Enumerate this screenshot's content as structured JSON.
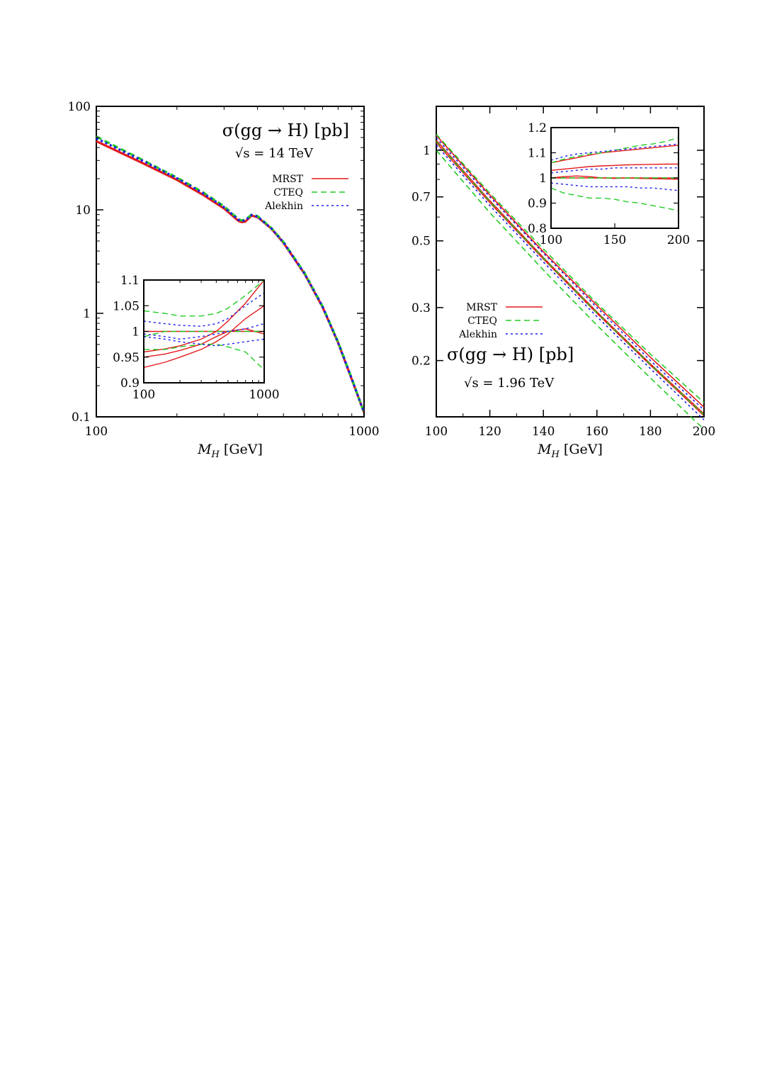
{
  "colors": {
    "MRST": "#e41a1c",
    "CTEQ": "#22cc22",
    "Alekhin": "#1a1aee"
  },
  "chart_data": [
    {
      "type": "line",
      "xlabel": "M_H [GeV]",
      "ylabel": "",
      "xscale": "log",
      "yscale": "log",
      "xlim": [
        100,
        1000
      ],
      "ylim": [
        0.1,
        100
      ],
      "xticks": [
        100,
        1000
      ],
      "xtick_labels": [
        "100",
        "1000"
      ],
      "yticks": [
        0.1,
        1,
        10,
        100
      ],
      "ytick_labels": [
        "0.1",
        "1",
        "10",
        "100"
      ],
      "annotation_title": "σ(gg → H) [pb]",
      "annotation_sub": "√s = 14 TeV",
      "legend": [
        "MRST",
        "CTEQ",
        "Alekhin"
      ],
      "legend_position": "top-right",
      "x": [
        100,
        150,
        200,
        250,
        300,
        340,
        350,
        360,
        380,
        400,
        450,
        500,
        600,
        700,
        800,
        900,
        1000
      ],
      "series": [
        {
          "name": "MRST",
          "style": "solid",
          "values": [
            46,
            28,
            19.5,
            14,
            10.3,
            7.8,
            7.6,
            7.7,
            8.8,
            8.5,
            6.6,
            4.8,
            2.4,
            1.15,
            0.52,
            0.23,
            0.11
          ]
        },
        {
          "name": "CTEQ",
          "style": "dashed",
          "values": [
            51,
            30,
            20.5,
            14.8,
            10.8,
            8.1,
            7.9,
            8.0,
            9.0,
            8.7,
            6.7,
            4.9,
            2.45,
            1.17,
            0.53,
            0.235,
            0.11
          ]
        },
        {
          "name": "Alekhin",
          "style": "dotted",
          "values": [
            49,
            29.5,
            20.2,
            14.5,
            10.6,
            8.0,
            7.8,
            7.9,
            8.9,
            8.6,
            6.65,
            4.85,
            2.42,
            1.16,
            0.52,
            0.232,
            0.11
          ]
        }
      ],
      "inset": {
        "xscale": "log",
        "xlim": [
          100,
          1000
        ],
        "ylim": [
          0.9,
          1.1
        ],
        "xticks": [
          100,
          1000
        ],
        "xtick_labels": [
          "100",
          "1000"
        ],
        "yticks": [
          0.9,
          0.95,
          1,
          1.05,
          1.1
        ],
        "ytick_labels": [
          "0.9",
          "0.95",
          "1",
          "1.05",
          "1.1"
        ],
        "x": [
          100,
          150,
          200,
          300,
          400,
          500,
          700,
          1000
        ],
        "series": [
          {
            "name": "MRST",
            "style": "solid",
            "values": [
              1,
              1,
              1,
              1,
              1,
              1,
              1,
              1
            ]
          },
          {
            "name": "MRST",
            "style": "solid",
            "values": [
              0.96,
              0.966,
              0.972,
              0.985,
              1.0,
              1.02,
              1.055,
              1.1
            ]
          },
          {
            "name": "MRST",
            "style": "solid",
            "values": [
              0.93,
              0.94,
              0.95,
              0.965,
              0.98,
              0.995,
              1.025,
              1.05
            ]
          },
          {
            "name": "MRST",
            "style": "solid",
            "values": [
              0.95,
              0.956,
              0.963,
              0.975,
              0.99,
              1.0,
              1.005,
              0.995
            ]
          },
          {
            "name": "CTEQ",
            "style": "dashed",
            "values": [
              1.04,
              1.035,
              1.03,
              1.03,
              1.035,
              1.045,
              1.07,
              1.1
            ]
          },
          {
            "name": "CTEQ",
            "style": "dashed",
            "values": [
              0.99,
              1.0,
              1.0,
              1.0,
              1.0,
              1.0,
              1.0,
              1.0
            ]
          },
          {
            "name": "CTEQ",
            "style": "dashed",
            "values": [
              0.965,
              0.965,
              0.97,
              0.975,
              0.975,
              0.97,
              0.96,
              0.925
            ]
          },
          {
            "name": "Alekhin",
            "style": "dotted",
            "values": [
              1.02,
              1.015,
              1.012,
              1.01,
              1.015,
              1.025,
              1.05,
              1.075
            ]
          },
          {
            "name": "Alekhin",
            "style": "dotted",
            "values": [
              0.99,
              0.985,
              0.98,
              0.975,
              0.972,
              0.975,
              0.98,
              0.985
            ]
          },
          {
            "name": "Alekhin",
            "style": "dotted",
            "values": [
              0.995,
              0.99,
              0.985,
              0.99,
              0.995,
              1.0,
              1.005,
              1.015
            ]
          }
        ]
      }
    },
    {
      "type": "line",
      "xlabel": "M_H [GeV]",
      "ylabel": "",
      "xscale": "linear",
      "yscale": "log",
      "xlim": [
        100,
        200
      ],
      "ylim": [
        0.13,
        1.4
      ],
      "xticks": [
        100,
        120,
        140,
        160,
        180,
        200
      ],
      "xtick_labels": [
        "100",
        "120",
        "140",
        "160",
        "180",
        "200"
      ],
      "yticks": [
        0.2,
        0.3,
        0.5,
        0.7,
        1
      ],
      "ytick_labels": [
        "0.2",
        "0.3",
        "0.5",
        "0.7",
        "1"
      ],
      "annotation_title": "σ(gg → H) [pb]",
      "annotation_sub": "√s = 1.96 TeV",
      "legend": [
        "MRST",
        "CTEQ",
        "Alekhin"
      ],
      "legend_position": "center-left",
      "x": [
        100,
        120,
        140,
        160,
        180,
        200
      ],
      "series": [
        {
          "name": "MRST",
          "style": "solid",
          "values": [
            1.12,
            0.71,
            0.46,
            0.305,
            0.205,
            0.14
          ]
        },
        {
          "name": "MRST",
          "style": "solid",
          "values": [
            1.08,
            0.68,
            0.44,
            0.29,
            0.195,
            0.133
          ]
        },
        {
          "name": "MRST",
          "style": "solid",
          "values": [
            1.06,
            0.67,
            0.435,
            0.287,
            0.193,
            0.131
          ]
        },
        {
          "name": "CTEQ",
          "style": "dashed",
          "values": [
            1.13,
            0.72,
            0.47,
            0.31,
            0.21,
            0.145
          ]
        },
        {
          "name": "CTEQ",
          "style": "dashed",
          "values": [
            1.07,
            0.675,
            0.438,
            0.288,
            0.194,
            0.132
          ]
        },
        {
          "name": "CTEQ",
          "style": "dashed",
          "values": [
            1.0,
            0.62,
            0.4,
            0.262,
            0.175,
            0.118
          ]
        },
        {
          "name": "Alekhin",
          "style": "dotted",
          "values": [
            1.1,
            0.7,
            0.455,
            0.3,
            0.2,
            0.137
          ]
        },
        {
          "name": "Alekhin",
          "style": "dotted",
          "values": [
            1.04,
            0.655,
            0.425,
            0.28,
            0.188,
            0.127
          ]
        }
      ],
      "inset": {
        "xscale": "linear",
        "xlim": [
          100,
          200
        ],
        "ylim": [
          0.8,
          1.2
        ],
        "xticks": [
          100,
          150,
          200
        ],
        "xtick_labels": [
          "100",
          "150",
          "200"
        ],
        "yticks": [
          0.8,
          0.9,
          1,
          1.1,
          1.2
        ],
        "ytick_labels": [
          "0.8",
          "0.9",
          "1",
          "1.1",
          "1.2"
        ],
        "x": [
          100,
          110,
          120,
          130,
          140,
          150,
          160,
          170,
          180,
          190,
          200
        ],
        "series": [
          {
            "name": "MRST",
            "style": "solid",
            "values": [
              1,
              1,
              1,
              1,
              1,
              1,
              1,
              1,
              1,
              1,
              1
            ]
          },
          {
            "name": "MRST",
            "style": "solid",
            "values": [
              1.06,
              1.07,
              1.08,
              1.09,
              1.1,
              1.105,
              1.11,
              1.115,
              1.12,
              1.125,
              1.13
            ]
          },
          {
            "name": "MRST",
            "style": "solid",
            "values": [
              1.03,
              1.035,
              1.04,
              1.045,
              1.048,
              1.05,
              1.052,
              1.053,
              1.054,
              1.055,
              1.055
            ]
          },
          {
            "name": "MRST",
            "style": "solid",
            "values": [
              1.0,
              1.005,
              1.008,
              1.005,
              1.0,
              0.998,
              1.0,
              0.998,
              0.997,
              0.996,
              0.995
            ]
          },
          {
            "name": "CTEQ",
            "style": "dashed",
            "values": [
              1.06,
              1.075,
              1.085,
              1.095,
              1.1,
              1.11,
              1.12,
              1.13,
              1.135,
              1.145,
              1.16
            ]
          },
          {
            "name": "CTEQ",
            "style": "dashed",
            "values": [
              1.0,
              1.0,
              1.0,
              1.0,
              1.0,
              1.0,
              1.0,
              1.0,
              1.0,
              1.0,
              1.0
            ]
          },
          {
            "name": "CTEQ",
            "style": "dashed",
            "values": [
              0.96,
              0.94,
              0.93,
              0.92,
              0.92,
              0.915,
              0.905,
              0.9,
              0.89,
              0.88,
              0.87
            ]
          },
          {
            "name": "Alekhin",
            "style": "dotted",
            "values": [
              1.07,
              1.085,
              1.095,
              1.1,
              1.105,
              1.11,
              1.115,
              1.12,
              1.125,
              1.13,
              1.135
            ]
          },
          {
            "name": "Alekhin",
            "style": "dotted",
            "values": [
              1.02,
              1.025,
              1.03,
              1.035,
              1.035,
              1.04,
              1.04,
              1.04,
              1.04,
              1.04,
              1.04
            ]
          },
          {
            "name": "Alekhin",
            "style": "dotted",
            "values": [
              0.98,
              0.975,
              0.97,
              0.965,
              0.965,
              0.965,
              0.965,
              0.96,
              0.96,
              0.955,
              0.95
            ]
          }
        ]
      }
    }
  ]
}
